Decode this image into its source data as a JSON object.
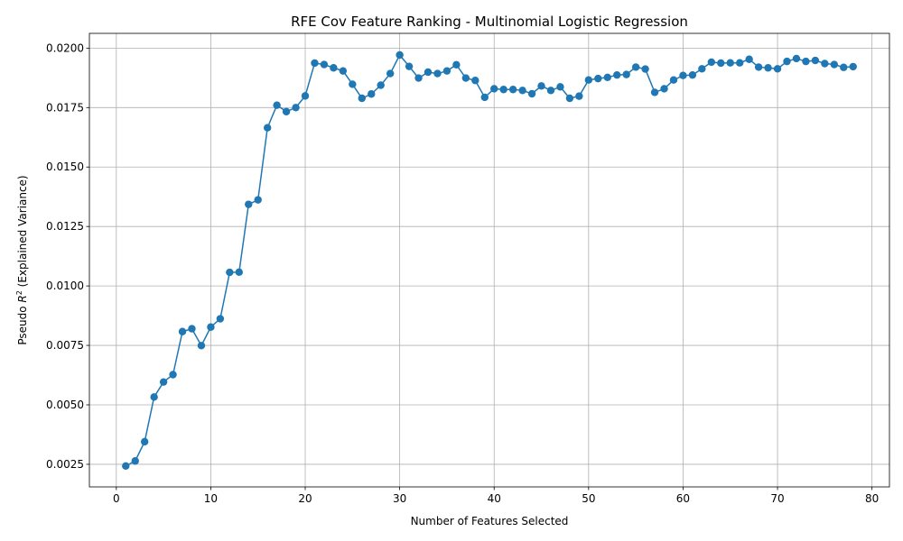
{
  "chart_data": {
    "type": "line",
    "title": "RFE Cov Feature Ranking - Multinomial Logistic Regression",
    "xlabel": "Number of Features Selected",
    "ylabel_prefix": "Pseudo ",
    "ylabel_var": "R",
    "ylabel_sup": "2",
    "ylabel_suffix": " (Explained Variance)",
    "xlim": [
      -2.85,
      81.85
    ],
    "ylim": [
      0.00155,
      0.02062
    ],
    "grid": true,
    "color": "#1f77b4",
    "x_ticks": [
      {
        "value": 0,
        "label": "0"
      },
      {
        "value": 10,
        "label": "10"
      },
      {
        "value": 20,
        "label": "20"
      },
      {
        "value": 30,
        "label": "30"
      },
      {
        "value": 40,
        "label": "40"
      },
      {
        "value": 50,
        "label": "50"
      },
      {
        "value": 60,
        "label": "60"
      },
      {
        "value": 70,
        "label": "70"
      },
      {
        "value": 80,
        "label": "80"
      }
    ],
    "y_ticks": [
      {
        "value": 0.0025,
        "label": "0.0025"
      },
      {
        "value": 0.005,
        "label": "0.0050"
      },
      {
        "value": 0.0075,
        "label": "0.0075"
      },
      {
        "value": 0.01,
        "label": "0.0100"
      },
      {
        "value": 0.0125,
        "label": "0.0125"
      },
      {
        "value": 0.015,
        "label": "0.0150"
      },
      {
        "value": 0.0175,
        "label": "0.0175"
      },
      {
        "value": 0.02,
        "label": "0.0200"
      }
    ],
    "series": [
      {
        "name": "Pseudo R2",
        "x": [
          1,
          2,
          3,
          4,
          5,
          6,
          7,
          8,
          9,
          10,
          11,
          12,
          13,
          14,
          15,
          16,
          17,
          18,
          19,
          20,
          21,
          22,
          23,
          24,
          25,
          26,
          27,
          28,
          29,
          30,
          31,
          32,
          33,
          34,
          35,
          36,
          37,
          38,
          39,
          40,
          41,
          42,
          43,
          44,
          45,
          46,
          47,
          48,
          49,
          50,
          51,
          52,
          53,
          54,
          55,
          56,
          57,
          58,
          59,
          60,
          61,
          62,
          63,
          64,
          65,
          66,
          67,
          68,
          69,
          70,
          71,
          72,
          73,
          74,
          75,
          76,
          77,
          78
        ],
        "values": [
          0.00243,
          0.00264,
          0.00345,
          0.00533,
          0.00596,
          0.00627,
          0.00808,
          0.0082,
          0.00749,
          0.00827,
          0.00862,
          0.01057,
          0.01058,
          0.01343,
          0.01362,
          0.01665,
          0.0176,
          0.01733,
          0.0175,
          0.01799,
          0.01937,
          0.01931,
          0.01917,
          0.01904,
          0.01848,
          0.01789,
          0.01807,
          0.01844,
          0.01893,
          0.01971,
          0.01923,
          0.01874,
          0.01899,
          0.01893,
          0.01904,
          0.0193,
          0.01874,
          0.01864,
          0.01793,
          0.01829,
          0.01826,
          0.01826,
          0.01822,
          0.01808,
          0.01841,
          0.01822,
          0.01837,
          0.01789,
          0.01798,
          0.01866,
          0.01872,
          0.01877,
          0.01887,
          0.01889,
          0.0192,
          0.01912,
          0.01814,
          0.01829,
          0.01866,
          0.01885,
          0.01887,
          0.01913,
          0.01941,
          0.01937,
          0.01938,
          0.01938,
          0.01953,
          0.0192,
          0.01917,
          0.01913,
          0.01944,
          0.01956,
          0.01944,
          0.01948,
          0.01935,
          0.01931,
          0.01919,
          0.01922
        ]
      }
    ]
  }
}
